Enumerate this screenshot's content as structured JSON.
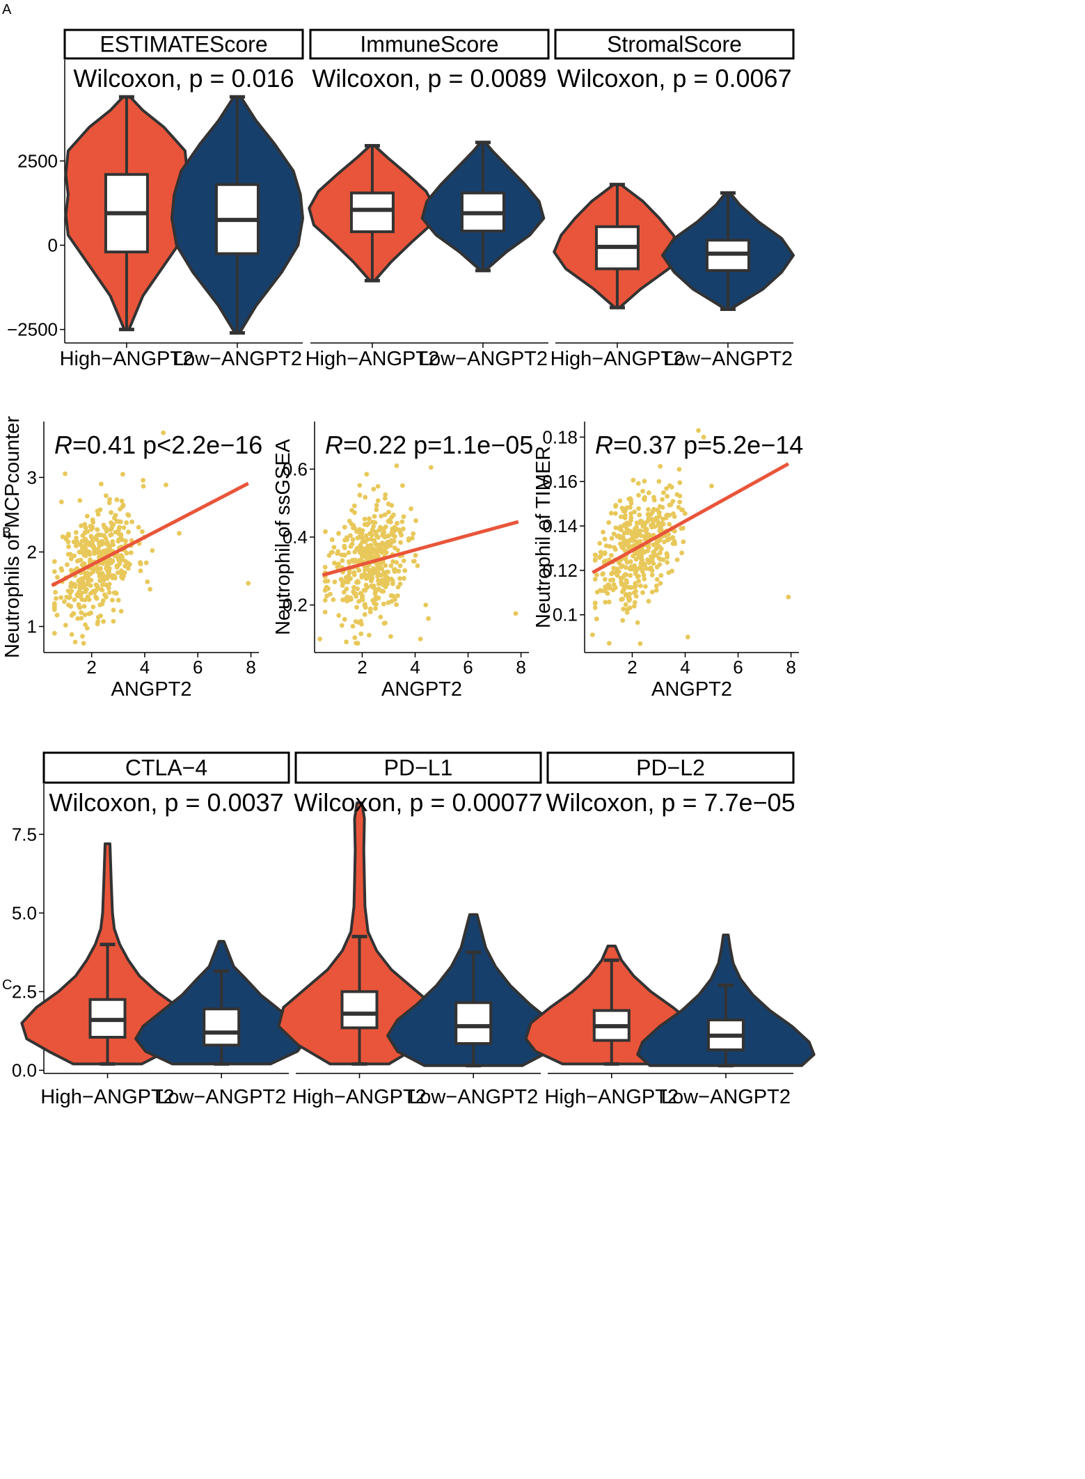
{
  "figure": {
    "panel_labels": [
      "A",
      "B",
      "C"
    ],
    "colors": {
      "high": "#E9553A",
      "low": "#173F6B",
      "outline": "#333333",
      "scatter_point": "#E8C85A",
      "regression_line": "#E9553A"
    }
  },
  "chart_data": [
    {
      "panel": "A",
      "type": "violin",
      "y_ticks": [
        {
          "value": 2500,
          "label": "2500"
        },
        {
          "value": 0,
          "label": "0"
        },
        {
          "value": -2500,
          "label": "−2500"
        }
      ],
      "ylim": [
        -2900,
        5500
      ],
      "groups": [
        "High−ANGPT2",
        "Low−ANGPT2"
      ],
      "facets": [
        {
          "title": "ESTIMATEScore",
          "stat_label": "Wilcoxon, p = 0.016",
          "violins": [
            {
              "group": "High−ANGPT2",
              "min": -2500,
              "max": 4400,
              "q1": -200,
              "median": 950,
              "q3": 2100,
              "shape": [
                [
                  -2500,
                  0.02
                ],
                [
                  -1500,
                  0.14
                ],
                [
                  -500,
                  0.34
                ],
                [
                  300,
                  0.5
                ],
                [
                  900,
                  0.52
                ],
                [
                  1500,
                  0.5
                ],
                [
                  2100,
                  0.52
                ],
                [
                  2800,
                  0.5
                ],
                [
                  3500,
                  0.32
                ],
                [
                  4000,
                  0.14
                ],
                [
                  4400,
                  0.03
                ]
              ]
            },
            {
              "group": "Low−ANGPT2",
              "min": -2600,
              "max": 4400,
              "q1": -250,
              "median": 750,
              "q3": 1800,
              "shape": [
                [
                  -2600,
                  0.02
                ],
                [
                  -1800,
                  0.16
                ],
                [
                  -800,
                  0.38
                ],
                [
                  0,
                  0.52
                ],
                [
                  800,
                  0.56
                ],
                [
                  1500,
                  0.54
                ],
                [
                  2200,
                  0.48
                ],
                [
                  3000,
                  0.32
                ],
                [
                  3700,
                  0.16
                ],
                [
                  4400,
                  0.03
                ]
              ]
            }
          ]
        },
        {
          "title": "ImmuneScore",
          "stat_label": "Wilcoxon, p = 0.0089",
          "violins": [
            {
              "group": "High−ANGPT2",
              "min": -1050,
              "max": 2950,
              "q1": 400,
              "median": 1050,
              "q3": 1550,
              "shape": [
                [
                  -1050,
                  0.02
                ],
                [
                  -500,
                  0.16
                ],
                [
                  100,
                  0.34
                ],
                [
                  600,
                  0.5
                ],
                [
                  1100,
                  0.54
                ],
                [
                  1600,
                  0.46
                ],
                [
                  2100,
                  0.3
                ],
                [
                  2600,
                  0.13
                ],
                [
                  2950,
                  0.02
                ]
              ]
            },
            {
              "group": "Low−ANGPT2",
              "min": -750,
              "max": 3050,
              "q1": 420,
              "median": 950,
              "q3": 1550,
              "shape": [
                [
                  -750,
                  0.02
                ],
                [
                  -200,
                  0.2
                ],
                [
                  300,
                  0.4
                ],
                [
                  800,
                  0.52
                ],
                [
                  1300,
                  0.48
                ],
                [
                  1800,
                  0.36
                ],
                [
                  2300,
                  0.22
                ],
                [
                  2800,
                  0.08
                ],
                [
                  3050,
                  0.02
                ]
              ]
            }
          ]
        },
        {
          "title": "StromalScore",
          "stat_label": "Wilcoxon, p = 0.0067",
          "violins": [
            {
              "group": "High−ANGPT2",
              "min": -1850,
              "max": 1800,
              "q1": -700,
              "median": -50,
              "q3": 550,
              "shape": [
                [
                  -1850,
                  0.02
                ],
                [
                  -1300,
                  0.2
                ],
                [
                  -700,
                  0.44
                ],
                [
                  -200,
                  0.54
                ],
                [
                  300,
                  0.48
                ],
                [
                  800,
                  0.36
                ],
                [
                  1300,
                  0.22
                ],
                [
                  1800,
                  0.03
                ]
              ]
            },
            {
              "group": "Low−ANGPT2",
              "min": -1900,
              "max": 1550,
              "q1": -750,
              "median": -250,
              "q3": 150,
              "shape": [
                [
                  -1900,
                  0.02
                ],
                [
                  -1300,
                  0.3
                ],
                [
                  -800,
                  0.46
                ],
                [
                  -300,
                  0.56
                ],
                [
                  200,
                  0.46
                ],
                [
                  700,
                  0.26
                ],
                [
                  1200,
                  0.1
                ],
                [
                  1550,
                  0.02
                ]
              ]
            }
          ]
        }
      ]
    },
    {
      "panel": "B",
      "type": "scatter",
      "x_label": "ANGPT2",
      "plots": [
        {
          "ylabel": "Neutrophils of MCPcounter",
          "r_label": "R",
          "stat_label": "=0.41 p<2.2e−16",
          "xlim": [
            0.2,
            8.3
          ],
          "ylim": [
            0.65,
            3.75
          ],
          "x_ticks": [
            2,
            4,
            6,
            8
          ],
          "y_ticks": [
            1,
            2,
            3
          ],
          "fit": {
            "x": [
              0.5,
              7.9
            ],
            "y": [
              1.55,
              2.92
            ]
          },
          "points": {
            "n": 430,
            "x_mean": 2.2,
            "x_sd": 0.75,
            "y_intercept": 1.42,
            "slope": 0.205,
            "noise_sd": 0.37,
            "seed": 11
          },
          "outliers": [
            [
              7.9,
              1.58
            ],
            [
              4.7,
              3.6
            ],
            [
              4.8,
              2.9
            ],
            [
              1.0,
              3.05
            ],
            [
              4.2,
              1.5
            ],
            [
              5.3,
              2.25
            ],
            [
              4.1,
              1.6
            ]
          ]
        },
        {
          "ylabel": "Neutrophil of ssGSEA",
          "r_label": "R",
          "stat_label": "=0.22 p=1.1e−05",
          "xlim": [
            0.2,
            8.3
          ],
          "ylim": [
            0.06,
            0.74
          ],
          "x_ticks": [
            2,
            4,
            6,
            8
          ],
          "y_ticks": [
            0.2,
            0.4,
            0.6
          ],
          "fit": {
            "x": [
              0.5,
              7.9
            ],
            "y": [
              0.288,
              0.445
            ]
          },
          "points": {
            "n": 430,
            "x_mean": 2.2,
            "x_sd": 0.75,
            "y_intercept": 0.28,
            "slope": 0.02,
            "noise_sd": 0.085,
            "seed": 23
          },
          "outliers": [
            [
              7.8,
              0.175
            ],
            [
              4.6,
              0.605
            ],
            [
              4.5,
              0.16
            ],
            [
              3.3,
              0.61
            ],
            [
              4.4,
              0.2
            ],
            [
              4.2,
              0.1
            ],
            [
              0.4,
              0.1
            ]
          ]
        },
        {
          "ylabel": "Neutrophil of TIMER",
          "r_label": "R",
          "stat_label": "=0.37 p=5.2e−14",
          "xlim": [
            0.2,
            8.3
          ],
          "ylim": [
            0.083,
            0.187
          ],
          "x_ticks": [
            2,
            4,
            6,
            8
          ],
          "y_ticks": [
            0.1,
            0.12,
            0.14,
            0.16,
            0.18
          ],
          "fit": {
            "x": [
              0.5,
              7.9
            ],
            "y": [
              0.119,
              0.168
            ]
          },
          "points": {
            "n": 430,
            "x_mean": 2.2,
            "x_sd": 0.75,
            "y_intercept": 0.115,
            "slope": 0.0075,
            "noise_sd": 0.0125,
            "seed": 37
          },
          "outliers": [
            [
              7.9,
              0.108
            ],
            [
              4.5,
              0.183
            ],
            [
              4.7,
              0.18
            ],
            [
              5.0,
              0.158
            ],
            [
              4.1,
              0.09
            ],
            [
              2.3,
              0.087
            ],
            [
              0.5,
              0.091
            ]
          ]
        }
      ]
    },
    {
      "panel": "C",
      "type": "violin",
      "y_ticks": [
        {
          "value": 7.5,
          "label": "7.5"
        },
        {
          "value": 5.0,
          "label": "5.0"
        },
        {
          "value": 2.5,
          "label": "2.5"
        },
        {
          "value": 0.0,
          "label": "0.0"
        }
      ],
      "ylim": [
        -0.1,
        9.1
      ],
      "groups": [
        "High−ANGPT2",
        "Low−ANGPT2"
      ],
      "facets": [
        {
          "title": "CTLA−4",
          "stat_label": "Wilcoxon, p = 0.0037",
          "violins": [
            {
              "group": "High−ANGPT2",
              "min": 0.2,
              "max": 7.2,
              "q1": 1.05,
              "median": 1.6,
              "q3": 2.25,
              "whisker_top": 4.0,
              "shape": [
                [
                  0.2,
                  0.28
                ],
                [
                  0.6,
                  0.48
                ],
                [
                  1.0,
                  0.66
                ],
                [
                  1.5,
                  0.7
                ],
                [
                  2.0,
                  0.58
                ],
                [
                  2.5,
                  0.4
                ],
                [
                  3.0,
                  0.26
                ],
                [
                  3.5,
                  0.17
                ],
                [
                  4.0,
                  0.1
                ],
                [
                  4.5,
                  0.055
                ],
                [
                  5.0,
                  0.04
                ],
                [
                  6.0,
                  0.03
                ],
                [
                  7.2,
                  0.02
                ]
              ]
            },
            {
              "group": "Low−ANGPT2",
              "min": 0.2,
              "max": 4.1,
              "q1": 0.8,
              "median": 1.2,
              "q3": 1.95,
              "whisker_top": 3.15,
              "shape": [
                [
                  0.2,
                  0.4
                ],
                [
                  0.6,
                  0.62
                ],
                [
                  1.0,
                  0.7
                ],
                [
                  1.4,
                  0.64
                ],
                [
                  1.9,
                  0.48
                ],
                [
                  2.4,
                  0.32
                ],
                [
                  2.9,
                  0.2
                ],
                [
                  3.3,
                  0.1
                ],
                [
                  3.7,
                  0.06
                ],
                [
                  4.1,
                  0.02
                ]
              ]
            }
          ]
        },
        {
          "title": "PD−L1",
          "stat_label": "Wilcoxon, p = 0.00077",
          "violins": [
            {
              "group": "High−ANGPT2",
              "min": 0.2,
              "max": 8.5,
              "q1": 1.35,
              "median": 1.8,
              "q3": 2.5,
              "whisker_top": 4.25,
              "shape": [
                [
                  0.2,
                  0.24
                ],
                [
                  0.8,
                  0.5
                ],
                [
                  1.4,
                  0.66
                ],
                [
                  2.0,
                  0.62
                ],
                [
                  2.6,
                  0.44
                ],
                [
                  3.2,
                  0.26
                ],
                [
                  3.8,
                  0.14
                ],
                [
                  4.4,
                  0.07
                ],
                [
                  5.2,
                  0.045
                ],
                [
                  6.0,
                  0.04
                ],
                [
                  7.0,
                  0.035
                ],
                [
                  8.0,
                  0.04
                ],
                [
                  8.5,
                  0.02
                ]
              ]
            },
            {
              "group": "Low−ANGPT2",
              "min": 0.15,
              "max": 4.95,
              "q1": 0.85,
              "median": 1.4,
              "q3": 2.15,
              "whisker_top": 3.75,
              "shape": [
                [
                  0.15,
                  0.4
                ],
                [
                  0.6,
                  0.62
                ],
                [
                  1.1,
                  0.7
                ],
                [
                  1.6,
                  0.62
                ],
                [
                  2.1,
                  0.46
                ],
                [
                  2.7,
                  0.3
                ],
                [
                  3.3,
                  0.18
                ],
                [
                  3.9,
                  0.1
                ],
                [
                  4.5,
                  0.06
                ],
                [
                  4.95,
                  0.03
                ]
              ]
            }
          ]
        },
        {
          "title": "PD−L2",
          "stat_label": "Wilcoxon, p = 7.7e−05",
          "violins": [
            {
              "group": "High−ANGPT2",
              "min": 0.2,
              "max": 3.95,
              "q1": 0.95,
              "median": 1.4,
              "q3": 1.9,
              "whisker_top": 3.5,
              "shape": [
                [
                  0.2,
                  0.4
                ],
                [
                  0.6,
                  0.62
                ],
                [
                  1.0,
                  0.7
                ],
                [
                  1.5,
                  0.66
                ],
                [
                  2.0,
                  0.5
                ],
                [
                  2.5,
                  0.32
                ],
                [
                  3.0,
                  0.18
                ],
                [
                  3.5,
                  0.08
                ],
                [
                  3.95,
                  0.03
                ]
              ]
            },
            {
              "group": "Low−ANGPT2",
              "min": 0.15,
              "max": 4.3,
              "q1": 0.65,
              "median": 1.1,
              "q3": 1.6,
              "whisker_top": 2.7,
              "shape": [
                [
                  0.15,
                  0.62
                ],
                [
                  0.5,
                  0.72
                ],
                [
                  0.9,
                  0.68
                ],
                [
                  1.4,
                  0.54
                ],
                [
                  1.9,
                  0.36
                ],
                [
                  2.4,
                  0.22
                ],
                [
                  2.9,
                  0.12
                ],
                [
                  3.4,
                  0.06
                ],
                [
                  3.9,
                  0.035
                ],
                [
                  4.3,
                  0.02
                ]
              ]
            }
          ]
        }
      ]
    }
  ]
}
